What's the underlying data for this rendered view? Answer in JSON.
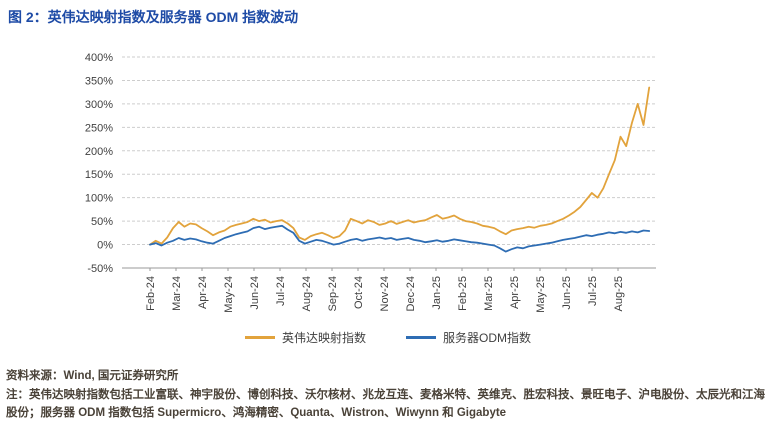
{
  "figure": {
    "title": "图 2：英伟达映射指数及服务器 ODM 指数波动",
    "source": "资料来源：Wind, 国元证券研究所",
    "note": "注：英伟达映射指数包括工业富联、神宇股份、博创科技、沃尔核材、兆龙互连、麦格米特、英维克、胜宏科技、景旺电子、沪电股份、太辰光和江海股份；服务器 ODM 指数包括 Supermicro、鸿海精密、Quanta、Wistron、Wiwynn 和 Gigabyte"
  },
  "colors": {
    "title_blue": "#1E4BA6",
    "nvidia_orange": "#E2A33C",
    "odm_blue": "#2E6DB4",
    "grid_gray": "#CDCDCD",
    "axis_gray": "#9A9A9A",
    "footer_text": "#4A4238"
  },
  "chart_data": {
    "type": "line",
    "title": "英伟达映射指数及服务器 ODM 指数波动",
    "xlabel": "",
    "ylabel": "",
    "ylim": [
      -50,
      400
    ],
    "ytick_step": 50,
    "ytick_format": "percent",
    "grid": "horizontal-dashed",
    "legend_position": "bottom",
    "x_tick_labels": [
      "Feb-24",
      "Mar-24",
      "Apr-24",
      "May-24",
      "Jun-24",
      "Jul-24",
      "Aug-24",
      "Sep-24",
      "Oct-24",
      "Nov-24",
      "Dec-24",
      "Jan-25",
      "Feb-25",
      "Mar-25",
      "Apr-25",
      "May-25",
      "Jun-25",
      "Jul-25",
      "Aug-25"
    ],
    "x_span_months": 19.2,
    "series": [
      {
        "name": "英伟达映射指数",
        "color": "#E2A33C",
        "values": [
          0,
          8,
          2,
          15,
          35,
          48,
          38,
          45,
          43,
          35,
          28,
          20,
          26,
          30,
          38,
          42,
          45,
          48,
          55,
          50,
          53,
          47,
          50,
          52,
          45,
          35,
          15,
          10,
          18,
          22,
          25,
          20,
          14,
          18,
          30,
          55,
          50,
          45,
          52,
          48,
          42,
          45,
          50,
          44,
          48,
          52,
          47,
          50,
          52,
          58,
          63,
          55,
          58,
          62,
          55,
          50,
          48,
          45,
          40,
          38,
          35,
          28,
          22,
          30,
          33,
          35,
          38,
          36,
          40,
          42,
          45,
          50,
          55,
          62,
          70,
          80,
          95,
          110,
          100,
          120,
          150,
          180,
          230,
          210,
          260,
          300,
          255,
          335
        ]
      },
      {
        "name": "服务器ODM指数",
        "color": "#2E6DB4",
        "values": [
          0,
          3,
          -2,
          4,
          8,
          14,
          10,
          13,
          11,
          7,
          4,
          2,
          8,
          14,
          18,
          22,
          25,
          28,
          35,
          38,
          33,
          36,
          38,
          40,
          32,
          25,
          8,
          2,
          6,
          10,
          8,
          4,
          0,
          2,
          6,
          10,
          12,
          8,
          11,
          13,
          15,
          12,
          14,
          10,
          12,
          14,
          10,
          8,
          5,
          7,
          9,
          6,
          8,
          11,
          9,
          7,
          5,
          4,
          2,
          0,
          -2,
          -8,
          -15,
          -10,
          -6,
          -8,
          -4,
          -2,
          0,
          2,
          4,
          7,
          10,
          12,
          14,
          17,
          20,
          18,
          21,
          23,
          26,
          24,
          27,
          25,
          28,
          26,
          30,
          29
        ]
      }
    ]
  }
}
